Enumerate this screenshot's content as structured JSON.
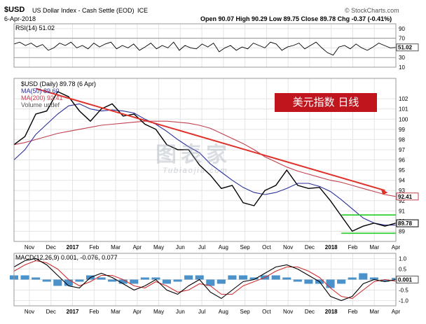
{
  "header": {
    "symbol": "$USD",
    "name": "US Dollar Index - Cash Settle (EOD)",
    "exchange": "ICE",
    "date": "6-Apr-2018",
    "quote": "Open 90.07 High 90.29 Low 89.75 Close 89.78 Chg -0.37 (-0.41%)",
    "copyright": "© StockCharts.com"
  },
  "banner": {
    "text": "美元指数  日线"
  },
  "watermark": {
    "main": "图表家",
    "sub": "Tubiaojia.com"
  },
  "colors": {
    "price": "#000000",
    "ma50": "#2b2f9a",
    "ma200": "#c0404f",
    "trend": "#e0302a",
    "channel": "#22cc22",
    "macd": "#000000",
    "signal": "#d03030",
    "hist": "#2a7fc0",
    "rsi": "#000000",
    "banner": "#c0151c"
  },
  "chart_data": [
    {
      "type": "line",
      "title": "RSI(14) 51.02",
      "legend": [
        "RSI(14) 51.02"
      ],
      "ylim": [
        10,
        100
      ],
      "yticks": [
        "90",
        "70",
        "50",
        "30",
        "10"
      ],
      "y_ticks_values": [
        90,
        70,
        50,
        30,
        10
      ],
      "last_label": "51.02",
      "last_value": 51.02,
      "series": [
        {
          "name": "RSI(14)",
          "values": [
            58,
            62,
            55,
            60,
            52,
            57,
            45,
            50,
            60,
            55,
            62,
            50,
            55,
            48,
            60,
            52,
            58,
            62,
            48,
            55,
            50,
            58,
            45,
            52,
            60,
            48,
            55,
            50,
            62,
            45,
            55,
            50,
            48,
            58,
            52,
            60,
            42,
            50,
            55,
            45,
            52,
            48,
            60,
            55,
            50,
            62,
            58,
            45,
            52,
            55,
            60,
            48,
            55,
            62,
            50,
            40,
            35,
            52,
            55,
            48,
            58,
            50,
            45,
            52,
            60,
            55,
            50,
            51
          ]
        }
      ]
    },
    {
      "type": "line",
      "title": "$USD (Daily) 89.78 (6 Apr)",
      "legend": [
        "$USD (Daily) 89.78 (6 Apr)",
        "MA(50) 89.60",
        "MA(200) 92.41",
        "Volume undef"
      ],
      "ylim": [
        88,
        104
      ],
      "yticks": [
        "102",
        "101",
        "100",
        "99",
        "98",
        "97",
        "96",
        "95",
        "94",
        "93",
        "92",
        "91",
        "90",
        "89"
      ],
      "y_ticks_values": [
        102,
        101,
        100,
        99,
        98,
        97,
        96,
        95,
        94,
        93,
        92,
        91,
        90,
        89
      ],
      "xlabels": [
        "Nov",
        "Dec",
        "2017",
        "Feb",
        "Mar",
        "Apr",
        "May",
        "Jun",
        "Jul",
        "Aug",
        "Sep",
        "Oct",
        "Nov",
        "Dec",
        "2018",
        "Feb",
        "Mar",
        "Apr"
      ],
      "x": [
        "2016-10-15",
        "2016-11-01",
        "2016-11-15",
        "2016-12-01",
        "2016-12-15",
        "2017-01-01",
        "2017-01-15",
        "2017-02-01",
        "2017-02-15",
        "2017-03-01",
        "2017-03-15",
        "2017-04-01",
        "2017-04-15",
        "2017-05-01",
        "2017-05-15",
        "2017-06-01",
        "2017-06-15",
        "2017-07-01",
        "2017-07-15",
        "2017-08-01",
        "2017-08-15",
        "2017-09-01",
        "2017-09-15",
        "2017-10-01",
        "2017-10-15",
        "2017-11-01",
        "2017-11-15",
        "2017-12-01",
        "2017-12-15",
        "2018-01-01",
        "2018-01-15",
        "2018-02-01",
        "2018-02-15",
        "2018-03-01",
        "2018-03-15",
        "2018-04-06"
      ],
      "series": [
        {
          "name": "$USD (Daily) 89.78 (6 Apr)",
          "values": [
            97.5,
            98.3,
            100.5,
            100.8,
            102.7,
            102.2,
            100.8,
            99.8,
            101.0,
            101.5,
            100.3,
            100.5,
            99.5,
            99.0,
            97.5,
            97.0,
            97.0,
            95.5,
            94.5,
            93.2,
            93.5,
            91.8,
            91.5,
            93.0,
            93.5,
            95.0,
            93.5,
            93.2,
            93.3,
            92.0,
            90.5,
            89.0,
            89.5,
            89.8,
            89.5,
            89.8
          ]
        },
        {
          "name": "MA(50) 89.60",
          "values": [
            96.0,
            97.0,
            98.5,
            99.5,
            100.5,
            101.3,
            101.5,
            101.0,
            100.8,
            100.9,
            100.8,
            100.6,
            100.0,
            99.5,
            98.8,
            98.0,
            97.3,
            96.7,
            95.6,
            94.8,
            94.0,
            93.3,
            92.8,
            92.6,
            92.8,
            93.2,
            93.7,
            93.7,
            93.4,
            92.9,
            92.1,
            91.2,
            90.3,
            89.8,
            89.6,
            89.6
          ]
        },
        {
          "name": "MA(200) 92.41",
          "values": [
            97.5,
            97.7,
            98.0,
            98.3,
            98.6,
            98.8,
            99.0,
            99.2,
            99.4,
            99.5,
            99.6,
            99.7,
            99.8,
            99.8,
            99.8,
            99.7,
            99.6,
            99.4,
            99.1,
            98.6,
            98.1,
            97.6,
            97.0,
            96.3,
            95.8,
            95.3,
            94.9,
            94.6,
            94.3,
            94.0,
            93.8,
            93.5,
            93.2,
            92.9,
            92.6,
            92.41
          ]
        }
      ],
      "annotations": [
        {
          "label": "trendline",
          "x": [
            "2016-11-15",
            "2018-03-15"
          ],
          "y": [
            103.0,
            93.0
          ]
        },
        {
          "label": "channel top",
          "value": 90.6
        },
        {
          "label": "channel bottom",
          "value": 88.8
        }
      ],
      "last_labels": [
        {
          "text": "92.41",
          "value": 92.41
        },
        {
          "text": "89.78",
          "value": 89.78
        }
      ]
    },
    {
      "type": "line",
      "title": "MACD(12,26,9) 0.001, -0.076, 0.077",
      "legend": [
        "MACD(12,26,9) 0.001, -0.076, 0.077"
      ],
      "ylim": [
        -1.25,
        1.25
      ],
      "yticks": [
        "1.0",
        "0.5",
        "0.0",
        "-0.5",
        "-1.0"
      ],
      "y_ticks_values": [
        1.0,
        0.5,
        0.0,
        -0.5,
        -1.0
      ],
      "xlabels": [
        "Nov",
        "Dec",
        "2017",
        "Feb",
        "Mar",
        "Apr",
        "May",
        "Jun",
        "Jul",
        "Aug",
        "Sep",
        "Oct",
        "Nov",
        "Dec",
        "2018",
        "Feb",
        "Mar",
        "Apr"
      ],
      "last_label": "0.001",
      "series": [
        {
          "name": "MACD",
          "values": [
            0.6,
            0.9,
            1.0,
            0.7,
            0.2,
            -0.3,
            -0.4,
            0.1,
            0.3,
            0.1,
            -0.2,
            -0.5,
            -0.3,
            0.0,
            -0.5,
            -0.7,
            -0.3,
            0.0,
            -0.6,
            -0.9,
            -0.5,
            -0.1,
            0.0,
            0.3,
            0.6,
            0.7,
            0.5,
            0.2,
            -0.1,
            -0.8,
            -1.0,
            -0.8,
            -0.2,
            0.0,
            -0.1,
            0.001
          ]
        },
        {
          "name": "Signal",
          "values": [
            0.4,
            0.7,
            0.9,
            0.8,
            0.5,
            0.0,
            -0.3,
            -0.1,
            0.2,
            0.2,
            0.0,
            -0.3,
            -0.4,
            -0.1,
            -0.3,
            -0.6,
            -0.5,
            -0.2,
            -0.3,
            -0.7,
            -0.7,
            -0.3,
            -0.1,
            0.1,
            0.4,
            0.6,
            0.6,
            0.4,
            0.1,
            -0.4,
            -0.8,
            -0.9,
            -0.5,
            -0.1,
            0.0,
            -0.076
          ]
        }
      ]
    }
  ]
}
